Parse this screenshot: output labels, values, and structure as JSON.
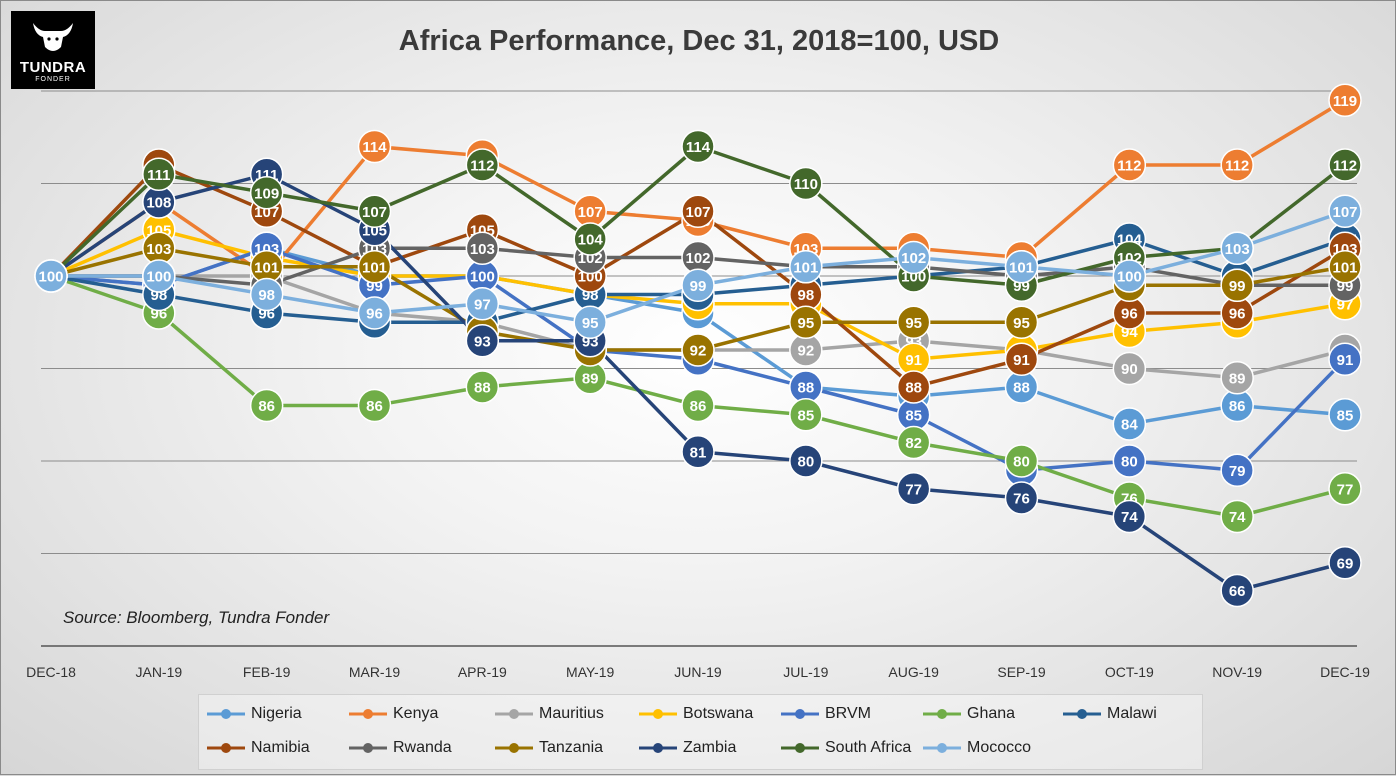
{
  "logo": {
    "brand": "TUNDRA",
    "sub": "FONDER"
  },
  "source": "Source: Bloomberg, Tundra Fonder",
  "chart_data": {
    "type": "line",
    "title": "Africa Performance, Dec 31, 2018=100, USD",
    "categories": [
      "DEC-18",
      "JAN-19",
      "FEB-19",
      "MAR-19",
      "APR-19",
      "MAY-19",
      "JUN-19",
      "JUL-19",
      "AUG-19",
      "SEP-19",
      "OCT-19",
      "NOV-19",
      "DEC-19"
    ],
    "ylim": [
      60,
      120
    ],
    "grid": true,
    "legend_position": "bottom",
    "series": [
      {
        "name": "Nigeria",
        "color": "#5b9bd5",
        "values": [
          100,
          99,
          103,
          100,
          100,
          98,
          96,
          88,
          87,
          88,
          84,
          86,
          85
        ]
      },
      {
        "name": "Kenya",
        "color": "#ed7d31",
        "values": [
          100,
          108,
          100,
          114,
          113,
          107,
          106,
          103,
          103,
          102,
          112,
          112,
          119
        ]
      },
      {
        "name": "Mauritius",
        "color": "#a5a5a5",
        "values": [
          100,
          100,
          100,
          96,
          95,
          92,
          92,
          92,
          93,
          92,
          90,
          89,
          92
        ]
      },
      {
        "name": "Botswana",
        "color": "#ffc000",
        "values": [
          100,
          105,
          102,
          100,
          100,
          98,
          97,
          97,
          91,
          92,
          94,
          95,
          97
        ]
      },
      {
        "name": "BRVM",
        "color": "#4472c4",
        "values": [
          100,
          99,
          103,
          99,
          100,
          92,
          91,
          88,
          85,
          79,
          80,
          79,
          91
        ]
      },
      {
        "name": "Ghana",
        "color": "#70ad47",
        "values": [
          100,
          96,
          86,
          86,
          88,
          89,
          86,
          85,
          82,
          80,
          76,
          74,
          77
        ]
      },
      {
        "name": "Malawi",
        "color": "#255e91",
        "values": [
          100,
          98,
          96,
          95,
          95,
          98,
          98,
          99,
          100,
          101,
          104,
          100,
          104
        ]
      },
      {
        "name": "Namibia",
        "color": "#9e480e",
        "values": [
          100,
          112,
          107,
          101,
          105,
          100,
          107,
          98,
          88,
          91,
          96,
          96,
          103
        ]
      },
      {
        "name": "Rwanda",
        "color": "#636363",
        "values": [
          100,
          100,
          99,
          103,
          103,
          102,
          102,
          101,
          101,
          100,
          101,
          99,
          99
        ]
      },
      {
        "name": "Tanzania",
        "color": "#997300",
        "values": [
          100,
          103,
          101,
          101,
          94,
          92,
          92,
          95,
          95,
          95,
          99,
          99,
          101
        ]
      },
      {
        "name": "Zambia",
        "color": "#264478",
        "values": [
          100,
          108,
          111,
          105,
          93,
          93,
          81,
          80,
          77,
          76,
          74,
          66,
          69
        ]
      },
      {
        "name": "South Africa",
        "color": "#43682b",
        "values": [
          100,
          111,
          109,
          107,
          112,
          104,
          114,
          110,
          100,
          99,
          102,
          103,
          112
        ]
      },
      {
        "name": "Mococco",
        "color": "#7cafdd",
        "values": [
          100,
          100,
          98,
          96,
          97,
          95,
          99,
          101,
          102,
          101,
          100,
          103,
          107
        ]
      }
    ]
  }
}
